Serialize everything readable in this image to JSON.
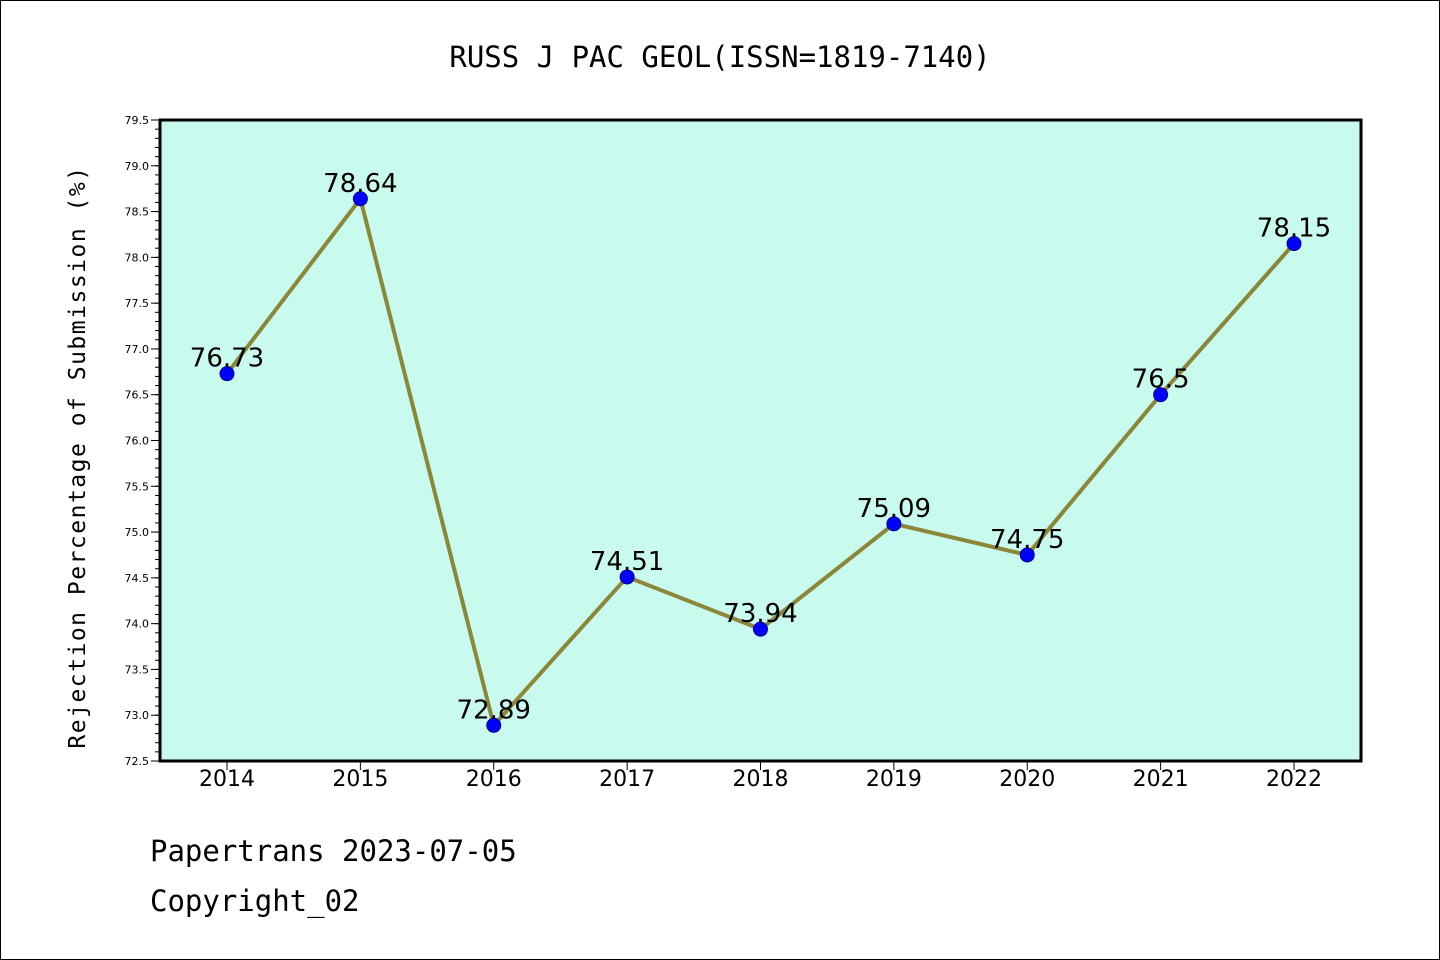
{
  "chart_data": {
    "type": "line",
    "title": "RUSS J PAC GEOL(ISSN=1819-7140)",
    "xlabel": "",
    "ylabel": "Rejection Percentage of Submission (%)",
    "categories": [
      "2014",
      "2015",
      "2016",
      "2017",
      "2018",
      "2019",
      "2020",
      "2021",
      "2022"
    ],
    "series": [
      {
        "values": [
          76.73,
          78.64,
          72.89,
          74.51,
          73.94,
          75.09,
          74.75,
          76.5,
          78.15
        ],
        "data_labels": [
          "76.73",
          "78.64",
          "72.89",
          "74.51",
          "73.94",
          "75.09",
          "74.75",
          "76.5",
          "78.15"
        ]
      }
    ],
    "ylim": [
      72.5,
      79.5
    ],
    "yticks": [
      "72.5",
      "73.0",
      "73.5",
      "74.0",
      "74.5",
      "75.0",
      "75.5",
      "76.0",
      "76.5",
      "77.0",
      "77.5",
      "78.0",
      "78.5",
      "79.0",
      "79.5"
    ],
    "grid": false,
    "legend": "none",
    "colors": {
      "plot_background": "#c8fbee",
      "line": "#8b8638",
      "marker": "#0000ff"
    }
  },
  "footer": {
    "line1": "Papertrans 2023-07-05",
    "line2": "Copyright_02"
  }
}
